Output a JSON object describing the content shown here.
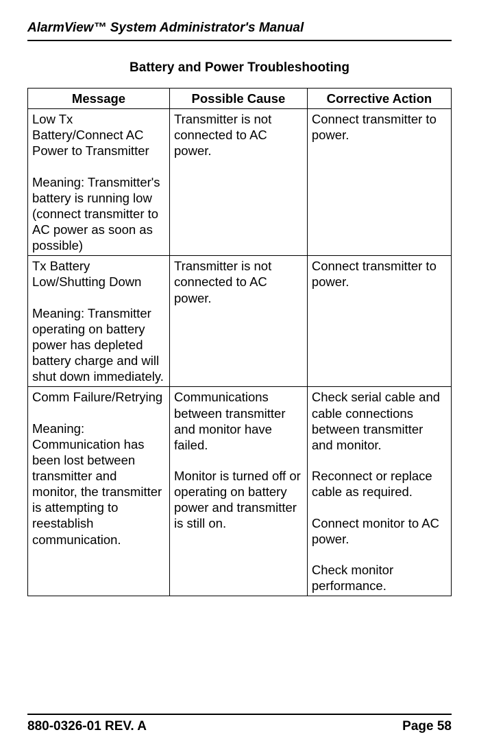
{
  "header": {
    "title": "AlarmView™ System Administrator's Manual"
  },
  "section": {
    "title": "Battery and Power Troubleshooting"
  },
  "table": {
    "columns": [
      "Message",
      "Possible Cause",
      "Corrective Action"
    ],
    "column_widths_pct": [
      33.5,
      32.5,
      34
    ],
    "border_color": "#000000",
    "font_size_pt": 14,
    "rows": [
      {
        "message_title": "Low Tx Battery/Connect AC Power to Transmitter",
        "message_meaning": "Meaning: Transmitter's battery is running low (connect transmitter to AC power as soon as possible)",
        "cause": "Transmitter is not connected to AC power.",
        "action": "Connect transmitter to power."
      },
      {
        "message_title": "Tx Battery Low/Shutting Down",
        "message_meaning": "Meaning: Transmitter operating on battery power has depleted battery charge and will shut down immediately.",
        "cause": "Transmitter is not connected to AC power.",
        "action": "Connect transmitter to power."
      },
      {
        "message_title": "Comm Failure/Retrying",
        "message_meaning": "Meaning: Communication has been lost between transmitter and monitor, the transmitter is attempting to reestablish communication.",
        "cause_p1": "Communications between transmitter and monitor have failed.",
        "cause_p2": "Monitor is turned off or operating on battery power and transmitter is still on.",
        "action_p1": "Check serial cable and cable connections between transmitter and monitor.",
        "action_p2": "Reconnect or replace cable as required.",
        "action_p3": "Connect monitor to AC power.",
        "action_p4": "Check monitor performance."
      }
    ]
  },
  "footer": {
    "left": "880-0326-01 REV. A",
    "right": "Page 58"
  },
  "colors": {
    "text": "#000000",
    "background": "#ffffff",
    "rule": "#000000"
  }
}
